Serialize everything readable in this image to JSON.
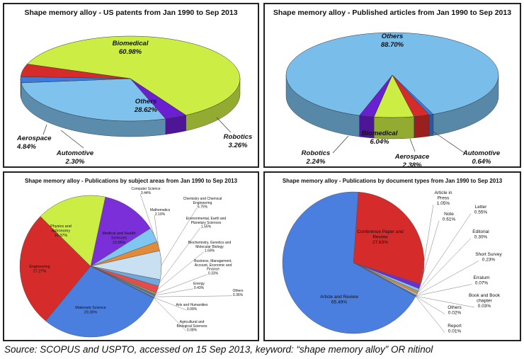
{
  "source": "Source: SCOPUS and USPTO, accessed on 15 Sep 2013, keyword: “shape memory alloy” OR nitinol",
  "chart_data": [
    {
      "type": "pie",
      "title": "Shape memory alloy - US patents from Jan 1990 to Sep 2013",
      "slices": [
        {
          "label": "Biomedical",
          "value_label": "60.98%",
          "value": 60.98,
          "color": "#ccee44"
        },
        {
          "label": "Robotics",
          "value_label": "3.26%",
          "value": 3.26,
          "color": "#6a1fd0"
        },
        {
          "label": "Others",
          "value_label": "28.62%",
          "value": 28.62,
          "color": "#7fc2ee"
        },
        {
          "label": "Automotive",
          "value_label": "2.30%",
          "value": 2.3,
          "color": "#3b7be0"
        },
        {
          "label": "Aerospace",
          "value_label": "4.84%",
          "value": 4.84,
          "color": "#d62b2b"
        }
      ]
    },
    {
      "type": "pie",
      "title": "Shape memory alloy - Published articles from Jan 1990 to Sep 2013",
      "slices": [
        {
          "label": "Others",
          "value_label": "88.70%",
          "value": 88.7,
          "color": "#79bdea"
        },
        {
          "label": "Automotive",
          "value_label": "0.64%",
          "value": 0.64,
          "color": "#3b7be0"
        },
        {
          "label": "Aerospace",
          "value_label": "2.38%",
          "value": 2.38,
          "color": "#d62b2b"
        },
        {
          "label": "Biomedical",
          "value_label": "6.04%",
          "value": 6.04,
          "color": "#ccee44"
        },
        {
          "label": "Robotics",
          "value_label": "2.24%",
          "value": 2.24,
          "color": "#6a1fd0"
        }
      ]
    },
    {
      "type": "pie",
      "title": "Shape memory alloy - Publications by subject areas from Jan 1990 to Sep 2013",
      "slices": [
        {
          "label": "Medical and Health Sciences",
          "value_label": "13.06%",
          "value": 13.06,
          "color": "#7a2fd8"
        },
        {
          "label": "Computer Science",
          "value_label": "3.44%",
          "value": 3.44,
          "color": "#7fc6f0"
        },
        {
          "label": "Mathematics",
          "value_label": "2.19%",
          "value": 2.19,
          "color": "#e08a3a"
        },
        {
          "label": "Chemistry and Chemical Engineering",
          "value_label": "6.75%",
          "value": 6.75,
          "color": "#c9e0f2"
        },
        {
          "label": "Environmental, Earth and Planetary Sciences",
          "value_label": "1.55%",
          "value": 1.55,
          "color": "#6fa8dc"
        },
        {
          "label": "Biochemistry, Genetics and Molecular Biology",
          "value_label": "1.69%",
          "value": 1.69,
          "color": "#e84b4b"
        },
        {
          "label": "Business, Management, Account, Economic and Finance",
          "value_label": "0.33%",
          "value": 0.33,
          "color": "#9bbb59"
        },
        {
          "label": "Energy",
          "value_label": "0.43%",
          "value": 0.43,
          "color": "#8064a2"
        },
        {
          "label": "Others",
          "value_label": "0.36%",
          "value": 0.36,
          "color": "#4bacc6"
        },
        {
          "label": "Arts and Humanities",
          "value_label": "0.09%",
          "value": 0.09,
          "color": "#f79646"
        },
        {
          "label": "Agricultural and Biological Sciences",
          "value_label": "0.08%",
          "value": 0.08,
          "color": "#c0504d"
        },
        {
          "label": "Materials Science",
          "value_label": "29.36%",
          "value": 29.36,
          "color": "#4a7fe0"
        },
        {
          "label": "Engineering",
          "value_label": "27.27%",
          "value": 27.27,
          "color": "#d62b2b"
        },
        {
          "label": "Physics and Astronomy",
          "value_label": "16.37%",
          "value": 16.37,
          "color": "#ccee44"
        }
      ]
    },
    {
      "type": "pie",
      "title": "Shape memory alloy - Publications by document types from Jan 1990 to Sep 2013",
      "slices": [
        {
          "label": "Conference Paper and Review",
          "value_label": "27.63%",
          "value": 27.63,
          "color": "#d62b2b"
        },
        {
          "label": "Article in Press",
          "value_label": "1.05%",
          "value": 1.05,
          "color": "#6a2fd0"
        },
        {
          "label": "Note",
          "value_label": "0.61%",
          "value": 0.61,
          "color": "#7fc6f0"
        },
        {
          "label": "Letter",
          "value_label": "0.55%",
          "value": 0.55,
          "color": "#e08a3a"
        },
        {
          "label": "Editorial",
          "value_label": "0.30%",
          "value": 0.3,
          "color": "#c9e0f2"
        },
        {
          "label": "Short Survey",
          "value_label": "0.23%",
          "value": 0.23,
          "color": "#6fa8dc"
        },
        {
          "label": "Erratum",
          "value_label": "0.07%",
          "value": 0.07,
          "color": "#e84b4b"
        },
        {
          "label": "Book and Book chapter",
          "value_label": "0.03%",
          "value": 0.03,
          "color": "#9bbb59"
        },
        {
          "label": "Others",
          "value_label": "0.02%",
          "value": 0.02,
          "color": "#8064a2"
        },
        {
          "label": "Report",
          "value_label": "0.01%",
          "value": 0.01,
          "color": "#4bacc6"
        },
        {
          "label": "Article and Review",
          "value_label": "65.49%",
          "value": 65.49,
          "color": "#4a7fe0"
        }
      ]
    }
  ]
}
